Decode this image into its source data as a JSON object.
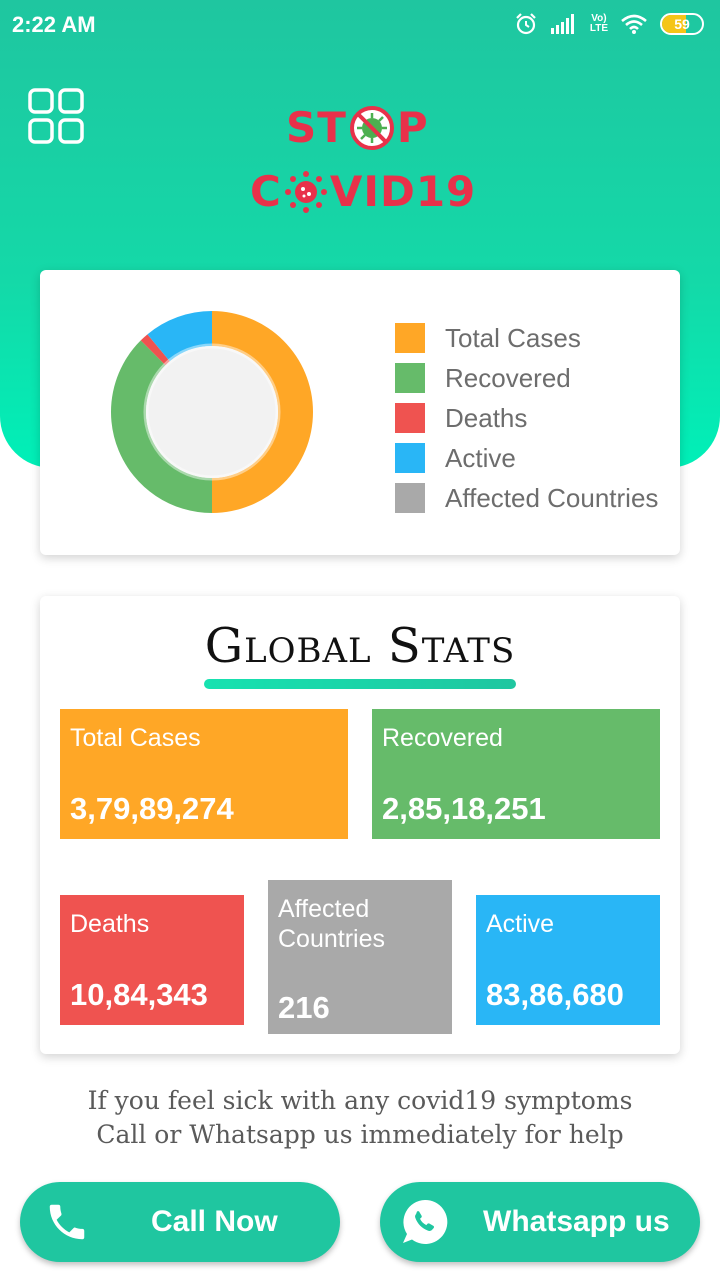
{
  "status_bar": {
    "time": "2:22 AM",
    "network": "Vo) LTE",
    "battery": "59",
    "battery_level": 0.59
  },
  "logo": {
    "line1": "ST",
    "line1_end": "P",
    "line2_start": "C",
    "line2_end": "VID19"
  },
  "chart_data": {
    "type": "pie",
    "variant": "donut",
    "categories": [
      "Total Cases",
      "Recovered",
      "Deaths",
      "Active",
      "Affected Countries"
    ],
    "values": [
      37989274,
      28518251,
      1084343,
      8386680,
      216
    ],
    "colors": [
      "#ffa726",
      "#66bb6a",
      "#ef5350",
      "#29b6f6",
      "#a9a9a9"
    ],
    "legend_position": "right"
  },
  "legend": [
    {
      "label": "Total Cases",
      "color": "#ffa726"
    },
    {
      "label": "Recovered",
      "color": "#66bb6a"
    },
    {
      "label": "Deaths",
      "color": "#ef5350"
    },
    {
      "label": "Active",
      "color": "#29b6f6"
    },
    {
      "label": "Affected Countries",
      "color": "#a9a9a9"
    }
  ],
  "global_stats": {
    "title": "Global Stats",
    "total_cases": {
      "label": "Total Cases",
      "value": "3,79,89,274",
      "color": "#ffa726"
    },
    "recovered": {
      "label": "Recovered",
      "value": "2,85,18,251",
      "color": "#66bb6a"
    },
    "deaths": {
      "label": "Deaths",
      "value": "10,84,343",
      "color": "#ef5350"
    },
    "affected": {
      "label_line1": "Affected",
      "label_line2": "Countries",
      "value": "216",
      "color": "#a9a9a9"
    },
    "active": {
      "label": "Active",
      "value": "83,86,680",
      "color": "#29b6f6"
    }
  },
  "help": {
    "line1": "If you feel sick with any covid19 symptoms",
    "line2": "Call or Whatsapp us immediately for help"
  },
  "buttons": {
    "call_label": "Call Now",
    "whatsapp_label": "Whatsapp us"
  },
  "icons": {
    "menu": "grid-menu-icon",
    "alarm": "alarm-icon",
    "signal": "signal-icon",
    "wifi": "wifi-icon",
    "battery": "battery-icon",
    "virus": "virus-icon",
    "phone": "phone-icon",
    "whatsapp": "whatsapp-icon"
  }
}
